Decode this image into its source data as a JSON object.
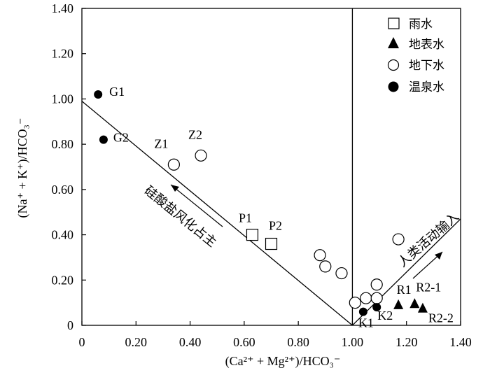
{
  "chart_data": {
    "type": "scatter",
    "xlabel": "(Ca²⁺ + Mg²⁺)/HCO₃⁻",
    "ylabel": "(Na⁺ + K⁺)/HCO₃⁻",
    "xlim": [
      0,
      1.4
    ],
    "ylim": [
      0,
      1.4
    ],
    "x_ticks": [
      "0",
      "0.20",
      "0.40",
      "0.60",
      "0.80",
      "1.00",
      "1.20",
      "1.40"
    ],
    "y_ticks": [
      "0",
      "0.20",
      "0.40",
      "0.60",
      "0.80",
      "1.00",
      "1.20",
      "1.40"
    ],
    "grid": false,
    "legend_position": "top-right",
    "series": [
      {
        "name": "雨水",
        "marker": "open-square",
        "points": [
          {
            "x": 0.63,
            "y": 0.4,
            "label": "P1"
          },
          {
            "x": 0.7,
            "y": 0.36,
            "label": "P2"
          }
        ]
      },
      {
        "name": "地表水",
        "marker": "filled-triangle",
        "points": [
          {
            "x": 1.17,
            "y": 0.09,
            "label": "R1"
          },
          {
            "x": 1.23,
            "y": 0.095,
            "label": "R2-1"
          },
          {
            "x": 1.26,
            "y": 0.075,
            "label": "R2-2"
          }
        ]
      },
      {
        "name": "地下水",
        "marker": "open-circle",
        "points": [
          {
            "x": 0.34,
            "y": 0.71,
            "label": "Z1"
          },
          {
            "x": 0.44,
            "y": 0.75,
            "label": "Z2"
          },
          {
            "x": 0.88,
            "y": 0.31
          },
          {
            "x": 0.9,
            "y": 0.26
          },
          {
            "x": 0.96,
            "y": 0.23
          },
          {
            "x": 1.01,
            "y": 0.1
          },
          {
            "x": 1.05,
            "y": 0.12
          },
          {
            "x": 1.09,
            "y": 0.18
          },
          {
            "x": 1.09,
            "y": 0.12
          },
          {
            "x": 1.17,
            "y": 0.38
          }
        ]
      },
      {
        "name": "温泉水",
        "marker": "filled-circle",
        "points": [
          {
            "x": 0.06,
            "y": 1.02,
            "label": "G1"
          },
          {
            "x": 0.08,
            "y": 0.82,
            "label": "G2"
          },
          {
            "x": 1.04,
            "y": 0.06,
            "label": "K1"
          },
          {
            "x": 1.09,
            "y": 0.08,
            "label": "K2"
          }
        ]
      }
    ],
    "lines": [
      {
        "x": [
          0,
          1.0
        ],
        "y": [
          0.99,
          0
        ]
      },
      {
        "x": [
          1.0,
          1.4
        ],
        "y": [
          0,
          0.47
        ]
      },
      {
        "x": [
          1.0,
          1.0
        ],
        "y": [
          0,
          1.4
        ]
      }
    ],
    "annotations": [
      "硅酸盐风化占主",
      "人类活动输入"
    ]
  }
}
